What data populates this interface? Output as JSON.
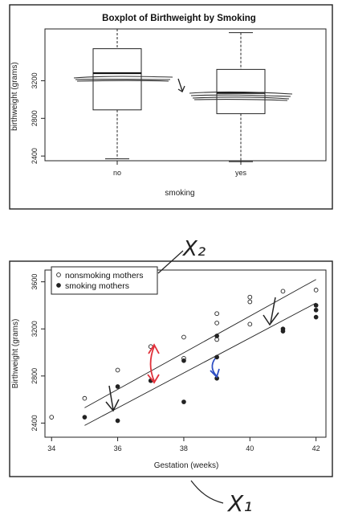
{
  "chart_data": [
    {
      "type": "boxplot",
      "title": "Boxplot of Birthweight by Smoking",
      "xlabel": "smoking",
      "ylabel": "birthweight (grams)",
      "ylim": [
        2350,
        3750
      ],
      "yticks": [
        2400,
        2800,
        3200
      ],
      "categories": [
        "no",
        "yes"
      ],
      "boxes": [
        {
          "category": "no",
          "whisker_low": 2370,
          "q1": 2890,
          "median": 3280,
          "q3": 3540,
          "whisker_high": 3750
        },
        {
          "category": "yes",
          "whisker_low": 2340,
          "q1": 2850,
          "median": 3070,
          "q3": 3320,
          "whisker_high": 3710
        }
      ],
      "grid": false
    },
    {
      "type": "scatter",
      "xlabel": "Gestation (weeks)",
      "ylabel": "Birthweight (grams)",
      "xlim": [
        33.8,
        42.3
      ],
      "ylim": [
        2280,
        3700
      ],
      "xticks": [
        34,
        36,
        38,
        40,
        42
      ],
      "yticks": [
        2400,
        2800,
        3200,
        3600
      ],
      "legend_position": "top-left",
      "series": [
        {
          "name": "nonsmoking mothers",
          "marker": "open-circle",
          "points": [
            [
              34,
              2450
            ],
            [
              35,
              2610
            ],
            [
              36,
              2850
            ],
            [
              37,
              3050
            ],
            [
              38,
              3130
            ],
            [
              38,
              2950
            ],
            [
              39,
              3330
            ],
            [
              39,
              3250
            ],
            [
              39,
              3110
            ],
            [
              40,
              3470
            ],
            [
              40,
              3430
            ],
            [
              40,
              3240
            ],
            [
              41,
              3520
            ],
            [
              42,
              3530
            ]
          ],
          "fit_line": [
            [
              35,
              2530
            ],
            [
              42,
              3620
            ]
          ]
        },
        {
          "name": "smoking mothers",
          "marker": "filled-circle",
          "points": [
            [
              35,
              2450
            ],
            [
              36,
              2420
            ],
            [
              36,
              2710
            ],
            [
              37,
              2760
            ],
            [
              38,
              2580
            ],
            [
              38,
              2930
            ],
            [
              39,
              2780
            ],
            [
              39,
              2960
            ],
            [
              39,
              3140
            ],
            [
              41,
              3200
            ],
            [
              41,
              3180
            ],
            [
              42,
              3360
            ],
            [
              42,
              3300
            ],
            [
              42,
              3400
            ]
          ],
          "fit_line": [
            [
              35,
              2380
            ],
            [
              42,
              3420
            ]
          ]
        }
      ],
      "grid": false
    }
  ],
  "annotations": {
    "label_x2": "X₂",
    "label_x1": "X₁"
  },
  "colors": {
    "red_arrow": "#e0303a",
    "blue_arrow": "#2f4fc4",
    "ink": "#222222"
  }
}
